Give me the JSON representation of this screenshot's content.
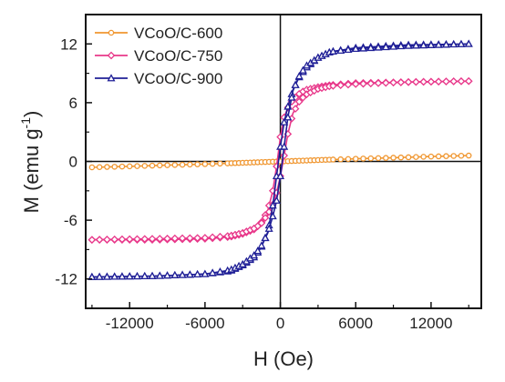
{
  "chart_data": {
    "type": "scatter",
    "title": "",
    "xlabel": "H (Oe)",
    "ylabel_main": "M (emu g",
    "ylabel_sup": "-1",
    "ylabel_close": ")",
    "xlim": [
      -15500,
      16000
    ],
    "ylim": [
      -15,
      15
    ],
    "xticks": [
      -12000,
      -6000,
      0,
      6000,
      12000
    ],
    "yticks": [
      -12,
      -6,
      0,
      6,
      12
    ],
    "grid": false,
    "legend_position": "top-left",
    "series": [
      {
        "name": "VCoO/C-600",
        "color": "#f0962f",
        "marker": "circle",
        "x": [
          -15000,
          -12000,
          -9000,
          -6000,
          -3000,
          0,
          3000,
          6000,
          9000,
          12000,
          15000
        ],
        "y": [
          -0.6,
          -0.5,
          -0.38,
          -0.27,
          -0.14,
          0.0,
          0.14,
          0.27,
          0.38,
          0.5,
          0.6
        ]
      },
      {
        "name": "VCoO/C-750",
        "color": "#e8388a",
        "marker": "diamond",
        "upper_branch": {
          "x": [
            -15000,
            -10000,
            -6000,
            -4000,
            -3000,
            -2000,
            -1500,
            -1000,
            -600,
            -300,
            0,
            300,
            600,
            1000,
            1500,
            2000,
            3000,
            4000,
            6000,
            10000,
            15000
          ],
          "y": [
            -8.0,
            -8.0,
            -7.9,
            -7.7,
            -7.4,
            -6.9,
            -6.2,
            -5.0,
            -3.0,
            -0.5,
            2.5,
            4.5,
            5.5,
            6.3,
            6.9,
            7.3,
            7.6,
            7.8,
            8.0,
            8.1,
            8.2
          ]
        },
        "lower_branch": {
          "x": [
            -15000,
            -10000,
            -6000,
            -4000,
            -3000,
            -2000,
            -1500,
            -1000,
            -600,
            -300,
            0,
            300,
            600,
            1000,
            1500,
            2000,
            3000,
            4000,
            6000,
            10000,
            15000
          ],
          "y": [
            -8.0,
            -7.9,
            -7.8,
            -7.6,
            -7.3,
            -6.8,
            -6.3,
            -5.4,
            -4.4,
            -3.2,
            -1.5,
            0.6,
            2.8,
            4.9,
            6.1,
            6.8,
            7.4,
            7.7,
            7.9,
            8.1,
            8.2
          ]
        }
      },
      {
        "name": "VCoO/C-900",
        "color": "#1f1f96",
        "marker": "triangle",
        "upper_branch": {
          "x": [
            -15000,
            -10000,
            -6000,
            -4000,
            -3000,
            -2000,
            -1500,
            -1000,
            -600,
            -300,
            0,
            300,
            600,
            1000,
            1500,
            2000,
            3000,
            4000,
            6000,
            10000,
            15000
          ],
          "y": [
            -11.8,
            -11.7,
            -11.5,
            -11.2,
            -10.6,
            -9.7,
            -8.7,
            -7.2,
            -4.5,
            -1.5,
            1.5,
            4.0,
            5.6,
            7.3,
            8.6,
            9.5,
            10.6,
            11.2,
            11.6,
            11.9,
            12.0
          ]
        },
        "lower_branch": {
          "x": [
            -15000,
            -10000,
            -6000,
            -4000,
            -3000,
            -2000,
            -1500,
            -1000,
            -600,
            -300,
            0,
            300,
            600,
            1000,
            1500,
            2000,
            3000,
            4000,
            6000,
            10000,
            15000
          ],
          "y": [
            -11.8,
            -11.7,
            -11.5,
            -11.1,
            -10.5,
            -9.5,
            -8.6,
            -7.3,
            -5.6,
            -4.0,
            -1.5,
            1.5,
            4.5,
            7.2,
            8.7,
            9.7,
            10.6,
            11.2,
            11.5,
            11.8,
            12.0
          ]
        }
      }
    ]
  }
}
